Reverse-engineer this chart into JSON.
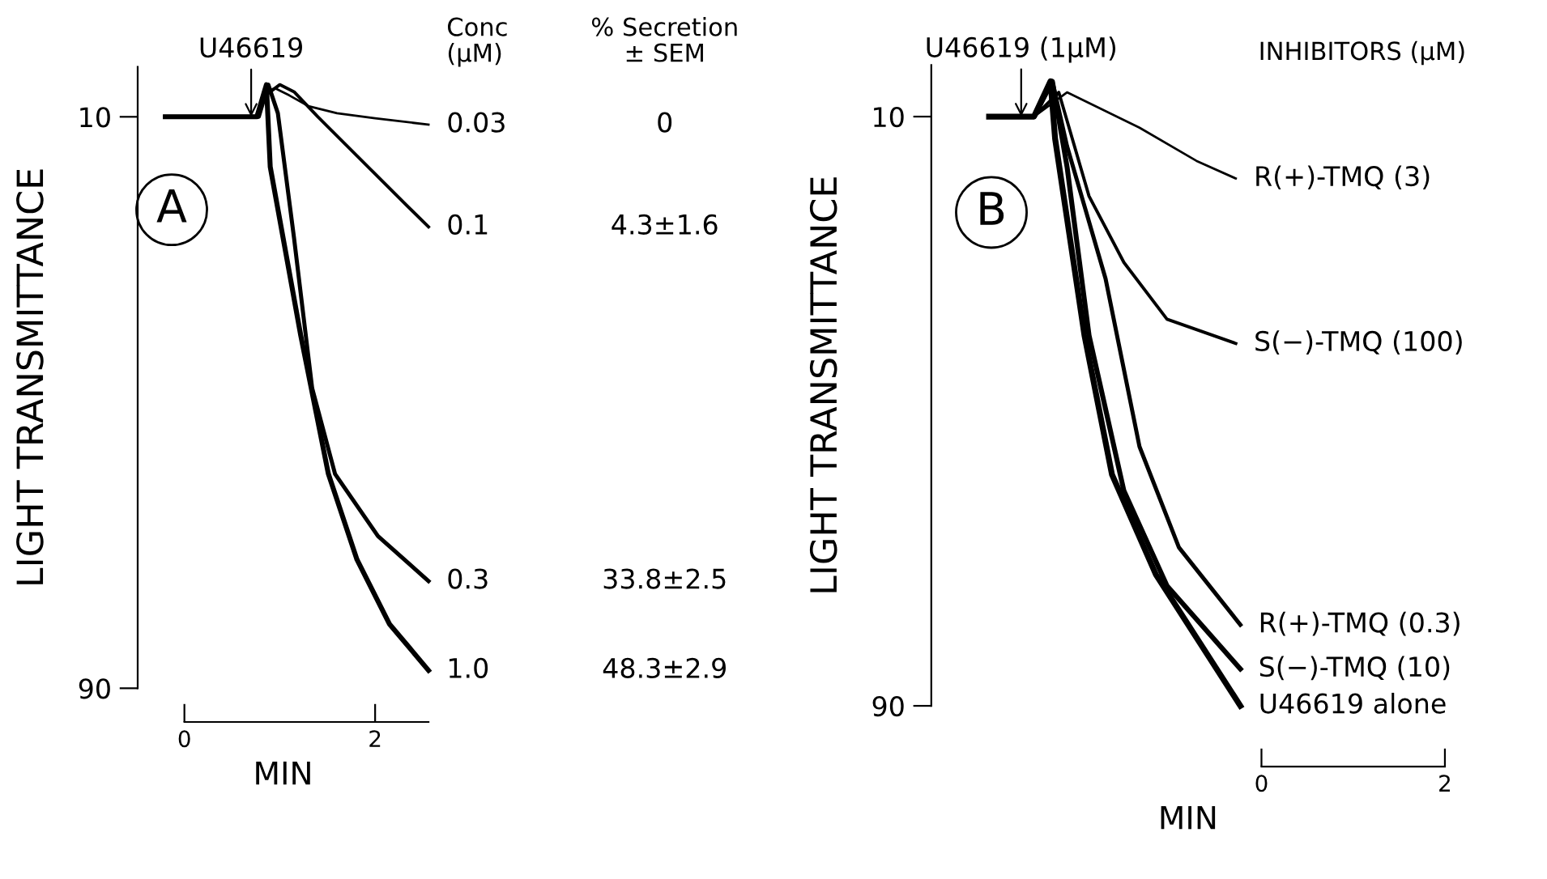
{
  "chart_data": [
    {
      "type": "line",
      "title": "A",
      "ylabel": "LIGHT TRANSMITTANCE",
      "xlabel": "MIN",
      "xlim": [
        -0.49,
        2.56
      ],
      "xticks": [
        0,
        2
      ],
      "ylim": [
        90,
        3
      ],
      "yticks": [
        10,
        90
      ],
      "legend": false,
      "grid": false,
      "line_style": "solid",
      "marker": "none",
      "annotations": [
        {
          "text": "U46619",
          "x": 0.7,
          "y": 10
        },
        "Conc\n(μM)",
        "% Secretion\n± SEM",
        "0",
        "4.3±1.6",
        "33.8±2.5",
        "48.3±2.9"
      ],
      "series": [
        {
          "name": "0.03",
          "color": "#000000",
          "x": [
            -0.2,
            0.75,
            0.85,
            0.95,
            1.1,
            1.3,
            1.6,
            2.0,
            2.56
          ],
          "values": [
            10,
            10,
            6.5,
            6,
            7,
            8.5,
            9.5,
            10.2,
            11.1
          ]
        },
        {
          "name": "0.1",
          "color": "#000000",
          "x": [
            -0.2,
            0.75,
            0.85,
            1.0,
            1.15,
            1.4,
            1.7,
            2.0,
            2.3,
            2.56
          ],
          "values": [
            10,
            10,
            7,
            5.5,
            6.5,
            10,
            14,
            18,
            22,
            25.4
          ]
        },
        {
          "name": "0.3",
          "color": "#000000",
          "x": [
            -0.2,
            0.78,
            0.88,
            0.98,
            1.15,
            1.34,
            1.58,
            2.03,
            2.56
          ],
          "values": [
            10,
            10,
            5.5,
            9.5,
            27,
            48,
            60,
            68.7,
            75
          ]
        },
        {
          "name": "1.0",
          "color": "#000000",
          "x": [
            -0.2,
            0.76,
            0.86,
            0.9,
            1.22,
            1.51,
            1.81,
            2.15,
            2.56
          ],
          "values": [
            10,
            10,
            5.5,
            17,
            40.6,
            60,
            72,
            81,
            87.5
          ]
        }
      ]
    },
    {
      "type": "line",
      "title": "B",
      "ylabel": "LIGHT TRANSMITTANCE",
      "xlabel": "MIN",
      "xlim": [
        -3.6,
        2
      ],
      "xticks": [
        0,
        2
      ],
      "ylim": [
        90,
        3
      ],
      "yticks": [
        10,
        90
      ],
      "legend": false,
      "grid": false,
      "line_style": "solid",
      "marker": "none",
      "annotations": [
        {
          "text": "U46619 (1μM)",
          "x": -2.62,
          "y": 10
        },
        "INHIBITORS (μM)"
      ],
      "series": [
        {
          "name": "R(+)-TMQ (3)",
          "color": "#000000",
          "x": [
            -2.97,
            -2.48,
            -2.12,
            -1.33,
            -0.71,
            -0.28
          ],
          "values": [
            10,
            10,
            6.7,
            11.5,
            16,
            18.4
          ]
        },
        {
          "name": "S(−)-TMQ (100)",
          "color": "#000000",
          "x": [
            -2.97,
            -2.48,
            -2.21,
            -1.88,
            -1.5,
            -1.03,
            -0.28
          ],
          "values": [
            10,
            10,
            6.7,
            20.8,
            29.8,
            37.5,
            40.8
          ]
        },
        {
          "name": "R(+)-TMQ (0.3)",
          "color": "#000000",
          "x": [
            -2.97,
            -2.48,
            -2.28,
            -2.12,
            -1.7,
            -1.33,
            -0.9,
            -0.23
          ],
          "values": [
            10,
            10,
            5.2,
            14,
            32,
            54.8,
            68.5,
            79
          ]
        },
        {
          "name": "S(−)-TMQ (10)",
          "color": "#000000",
          "x": [
            -2.97,
            -2.48,
            -2.28,
            -2.12,
            -1.88,
            -1.5,
            -1.03,
            -0.23
          ],
          "values": [
            10,
            10,
            5.2,
            16.8,
            39.7,
            60.8,
            73.7,
            85
          ]
        },
        {
          "name": "U46619 alone",
          "color": "#000000",
          "x": [
            -2.97,
            -2.48,
            -2.3,
            -2.25,
            -1.93,
            -1.63,
            -1.15,
            -0.23
          ],
          "values": [
            10,
            10,
            5.2,
            13,
            39.7,
            58.6,
            72.2,
            90
          ]
        }
      ]
    }
  ]
}
